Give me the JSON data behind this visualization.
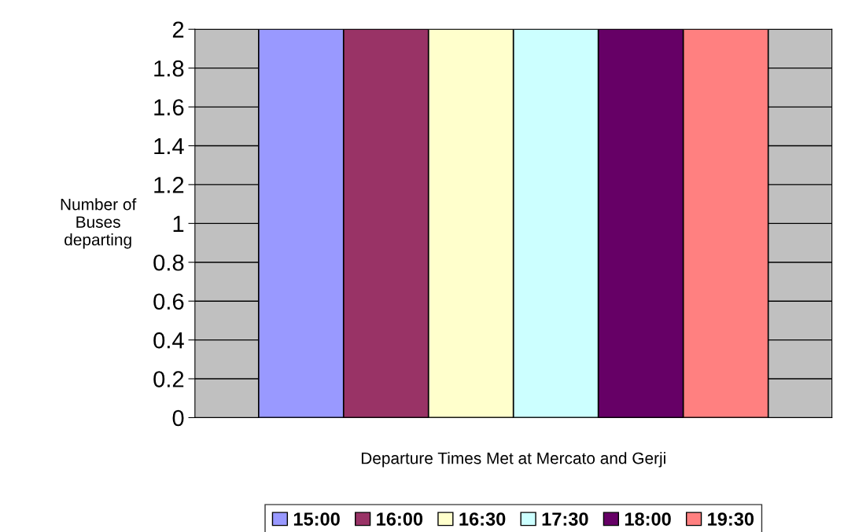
{
  "chart_data": {
    "type": "bar",
    "categories": [
      null
    ],
    "series": [
      {
        "name": "15:00",
        "color": "#9999ff",
        "values": [
          2
        ]
      },
      {
        "name": "16:00",
        "color": "#993366",
        "values": [
          2
        ]
      },
      {
        "name": "16:30",
        "color": "#ffffcc",
        "values": [
          2
        ]
      },
      {
        "name": "17:30",
        "color": "#ccffff",
        "values": [
          2
        ]
      },
      {
        "name": "18:00",
        "color": "#660066",
        "values": [
          2
        ]
      },
      {
        "name": "19:30",
        "color": "#ff8080",
        "values": [
          2
        ]
      }
    ],
    "xlabel": "Departure Times Met at Mercato and Gerji",
    "ylabel": "Number of\nBuses\ndeparting",
    "ylim": [
      0,
      2
    ],
    "yticks": [
      0,
      0.2,
      0.4,
      0.6,
      0.8,
      1,
      1.2,
      1.4,
      1.6,
      1.8,
      2
    ],
    "grid": "y",
    "legend": "bottom"
  }
}
